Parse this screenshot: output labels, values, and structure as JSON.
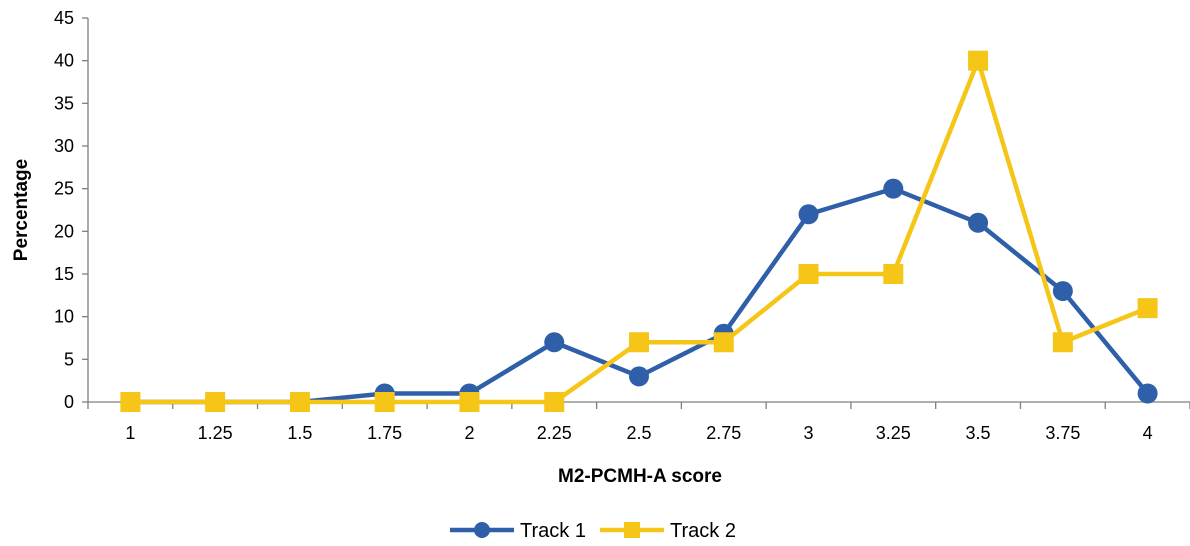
{
  "chart_data": {
    "type": "line",
    "title": "",
    "xlabel": "M2-PCMH-A score",
    "ylabel": "Percentage",
    "x": [
      "1",
      "1.25",
      "1.5",
      "1.75",
      "2",
      "2.25",
      "2.5",
      "2.75",
      "3",
      "3.25",
      "3.5",
      "3.75",
      "4"
    ],
    "ylim": [
      0,
      45
    ],
    "yticks": [
      "0",
      "5",
      "10",
      "15",
      "20",
      "25",
      "30",
      "35",
      "40",
      "45"
    ],
    "grid": false,
    "legend_position": "bottom",
    "series": [
      {
        "name": "Track 1",
        "color": "#2e5fa8",
        "marker": "circle",
        "values": [
          0,
          0,
          0,
          1,
          1,
          7,
          3,
          8,
          22,
          25,
          21,
          13,
          1
        ]
      },
      {
        "name": "Track 2",
        "color": "#f5c518",
        "marker": "square",
        "values": [
          0,
          0,
          0,
          0,
          0,
          0,
          7,
          7,
          15,
          15,
          40,
          7,
          11
        ]
      }
    ]
  }
}
